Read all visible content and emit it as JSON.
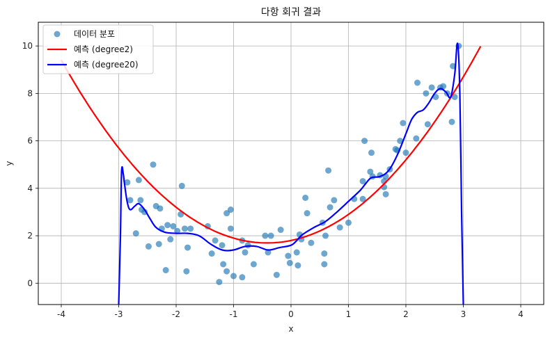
{
  "chart_data": {
    "type": "scatter",
    "title": "다항 회귀 결과",
    "xlabel": "x",
    "ylabel": "y",
    "xlim": [
      -4.4,
      4.4
    ],
    "ylim": [
      -0.9,
      11.0
    ],
    "x_ticks": [
      -4,
      -3,
      -2,
      -1,
      0,
      1,
      2,
      3,
      4
    ],
    "y_ticks": [
      0,
      2,
      4,
      6,
      8,
      10
    ],
    "grid": true,
    "legend_position": "top-left",
    "colors": {
      "points": "#1f77b4",
      "degree2": "#ff0000",
      "degree20": "#0000ff"
    },
    "legend": {
      "points": "데이터 분포",
      "degree2": "예측 (degree2)",
      "degree20": "예측 (degree20)"
    },
    "series": [
      {
        "name": "데이터 분포",
        "kind": "scatter",
        "points": [
          [
            -2.85,
            4.25
          ],
          [
            -2.8,
            3.5
          ],
          [
            -2.7,
            2.1
          ],
          [
            -2.65,
            4.35
          ],
          [
            -2.62,
            3.5
          ],
          [
            -2.6,
            3.1
          ],
          [
            -2.55,
            3.0
          ],
          [
            -2.48,
            1.55
          ],
          [
            -2.4,
            5.0
          ],
          [
            -2.35,
            3.25
          ],
          [
            -2.3,
            1.65
          ],
          [
            -2.28,
            3.15
          ],
          [
            -2.25,
            2.3
          ],
          [
            -2.18,
            0.55
          ],
          [
            -2.15,
            2.45
          ],
          [
            -2.1,
            1.85
          ],
          [
            -2.05,
            2.4
          ],
          [
            -1.98,
            2.2
          ],
          [
            -1.92,
            2.9
          ],
          [
            -1.9,
            4.1
          ],
          [
            -1.85,
            2.3
          ],
          [
            -1.82,
            0.5
          ],
          [
            -1.8,
            1.5
          ],
          [
            -1.75,
            2.3
          ],
          [
            -1.45,
            2.4
          ],
          [
            -1.38,
            1.25
          ],
          [
            -1.32,
            1.8
          ],
          [
            -1.25,
            0.05
          ],
          [
            -1.2,
            1.6
          ],
          [
            -1.18,
            0.8
          ],
          [
            -1.12,
            0.5
          ],
          [
            -1.12,
            2.95
          ],
          [
            -1.05,
            3.1
          ],
          [
            -1.05,
            2.3
          ],
          [
            -1.0,
            0.3
          ],
          [
            -0.85,
            1.8
          ],
          [
            -0.85,
            0.25
          ],
          [
            -0.8,
            1.3
          ],
          [
            -0.75,
            1.6
          ],
          [
            -0.65,
            0.8
          ],
          [
            -0.45,
            2.0
          ],
          [
            -0.4,
            1.3
          ],
          [
            -0.35,
            2.0
          ],
          [
            -0.25,
            0.35
          ],
          [
            -0.18,
            2.25
          ],
          [
            -0.05,
            1.15
          ],
          [
            -0.02,
            0.85
          ],
          [
            0.1,
            1.3
          ],
          [
            0.12,
            0.75
          ],
          [
            0.15,
            2.05
          ],
          [
            0.18,
            1.85
          ],
          [
            0.25,
            3.6
          ],
          [
            0.28,
            2.95
          ],
          [
            0.35,
            1.7
          ],
          [
            0.55,
            2.55
          ],
          [
            0.58,
            0.8
          ],
          [
            0.58,
            1.25
          ],
          [
            0.6,
            2.0
          ],
          [
            0.65,
            4.75
          ],
          [
            0.68,
            3.2
          ],
          [
            0.75,
            3.5
          ],
          [
            0.85,
            2.35
          ],
          [
            1.0,
            2.55
          ],
          [
            1.1,
            3.55
          ],
          [
            1.25,
            4.3
          ],
          [
            1.25,
            3.55
          ],
          [
            1.28,
            6.0
          ],
          [
            1.38,
            4.7
          ],
          [
            1.4,
            5.5
          ],
          [
            1.42,
            4.5
          ],
          [
            1.55,
            4.55
          ],
          [
            1.62,
            4.3
          ],
          [
            1.62,
            4.05
          ],
          [
            1.65,
            3.75
          ],
          [
            1.65,
            4.5
          ],
          [
            1.72,
            4.8
          ],
          [
            1.82,
            5.65
          ],
          [
            1.85,
            5.6
          ],
          [
            1.9,
            6.0
          ],
          [
            1.95,
            6.75
          ],
          [
            2.0,
            5.5
          ],
          [
            2.18,
            6.1
          ],
          [
            2.2,
            8.45
          ],
          [
            2.35,
            8.0
          ],
          [
            2.38,
            6.7
          ],
          [
            2.45,
            8.25
          ],
          [
            2.52,
            7.85
          ],
          [
            2.6,
            8.25
          ],
          [
            2.65,
            8.3
          ],
          [
            2.72,
            8.0
          ],
          [
            2.8,
            6.8
          ],
          [
            2.82,
            9.15
          ],
          [
            2.85,
            7.85
          ],
          [
            2.92,
            10.0
          ]
        ]
      },
      {
        "name": "예측 (degree2)",
        "kind": "line",
        "function": "quadratic",
        "coefficients": {
          "a": 0.6,
          "b": 0.5,
          "c": 1.8
        },
        "x_range": [
          -4.0,
          3.3
        ]
      },
      {
        "name": "예측 (degree20)",
        "kind": "line",
        "points": [
          [
            -3.0,
            -0.9
          ],
          [
            -2.97,
            2.0
          ],
          [
            -2.95,
            4.7
          ],
          [
            -2.92,
            4.6
          ],
          [
            -2.9,
            4.2
          ],
          [
            -2.85,
            3.4
          ],
          [
            -2.8,
            3.1
          ],
          [
            -2.72,
            3.25
          ],
          [
            -2.65,
            3.35
          ],
          [
            -2.55,
            3.1
          ],
          [
            -2.45,
            2.7
          ],
          [
            -2.35,
            2.35
          ],
          [
            -2.2,
            2.15
          ],
          [
            -2.0,
            2.1
          ],
          [
            -1.8,
            2.1
          ],
          [
            -1.6,
            2.0
          ],
          [
            -1.4,
            1.65
          ],
          [
            -1.2,
            1.4
          ],
          [
            -1.0,
            1.4
          ],
          [
            -0.8,
            1.55
          ],
          [
            -0.6,
            1.55
          ],
          [
            -0.4,
            1.4
          ],
          [
            -0.2,
            1.5
          ],
          [
            0.0,
            1.6
          ],
          [
            0.1,
            1.8
          ],
          [
            0.2,
            2.05
          ],
          [
            0.4,
            2.35
          ],
          [
            0.6,
            2.6
          ],
          [
            0.8,
            3.0
          ],
          [
            1.0,
            3.45
          ],
          [
            1.2,
            3.9
          ],
          [
            1.3,
            4.2
          ],
          [
            1.4,
            4.45
          ],
          [
            1.55,
            4.5
          ],
          [
            1.7,
            4.75
          ],
          [
            1.85,
            5.4
          ],
          [
            2.0,
            6.3
          ],
          [
            2.1,
            6.9
          ],
          [
            2.2,
            7.2
          ],
          [
            2.3,
            7.3
          ],
          [
            2.4,
            7.6
          ],
          [
            2.5,
            8.0
          ],
          [
            2.6,
            8.2
          ],
          [
            2.7,
            8.05
          ],
          [
            2.78,
            7.85
          ],
          [
            2.85,
            8.8
          ],
          [
            2.9,
            10.1
          ],
          [
            2.94,
            8.0
          ],
          [
            2.97,
            3.0
          ],
          [
            3.0,
            -0.9
          ]
        ]
      }
    ]
  }
}
